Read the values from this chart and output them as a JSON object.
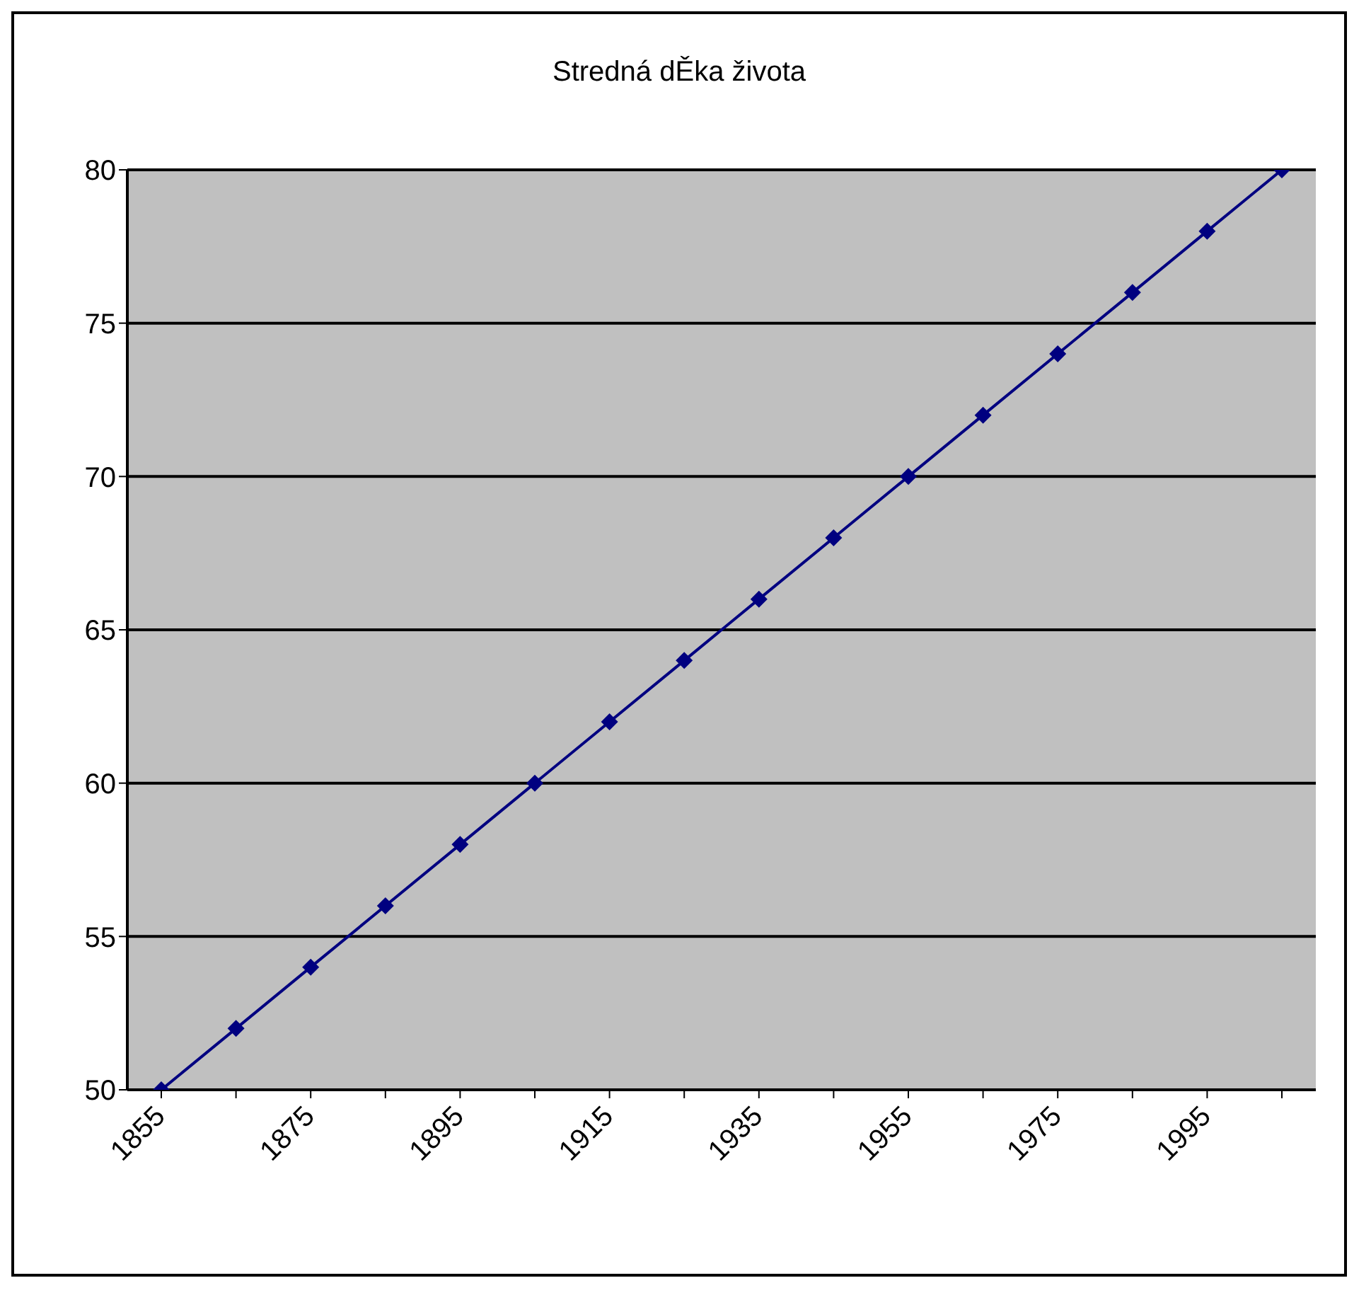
{
  "chart_data": {
    "type": "line",
    "title": "Stredná dĚka života",
    "categories": [
      "1855",
      null,
      "1875",
      null,
      "1895",
      null,
      "1915",
      null,
      "1935",
      null,
      "1955",
      null,
      "1975",
      null,
      "1995",
      null
    ],
    "series": [
      {
        "color": "#000080",
        "values": [
          50,
          52,
          54,
          56,
          58,
          60,
          62,
          64,
          66,
          68,
          70,
          72,
          74,
          76,
          78,
          80
        ]
      }
    ],
    "ylim": [
      50,
      80
    ],
    "yticks": [
      50,
      55,
      60,
      65,
      70,
      75,
      80
    ],
    "grid": "y",
    "marker": "diamond",
    "line_style": "solid"
  }
}
